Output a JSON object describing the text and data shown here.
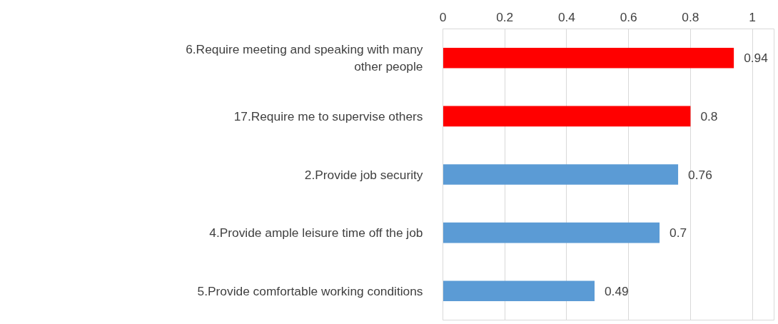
{
  "chart_data": {
    "type": "bar",
    "orientation": "horizontal",
    "categories": [
      "6.Require meeting and speaking with many other people",
      "17.Require me to supervise others",
      "2.Provide job security",
      "4.Provide ample leisure time off the job",
      "5.Provide comfortable working conditions"
    ],
    "values": [
      0.94,
      0.8,
      0.76,
      0.7,
      0.49
    ],
    "colors": [
      "#ff0000",
      "#ff0000",
      "#5b9bd5",
      "#5b9bd5",
      "#5b9bd5"
    ],
    "xlim": [
      0,
      1.07
    ],
    "xticks": [
      0,
      0.2,
      0.4,
      0.6,
      0.8,
      1
    ],
    "grid": "x",
    "data_labels": true
  }
}
